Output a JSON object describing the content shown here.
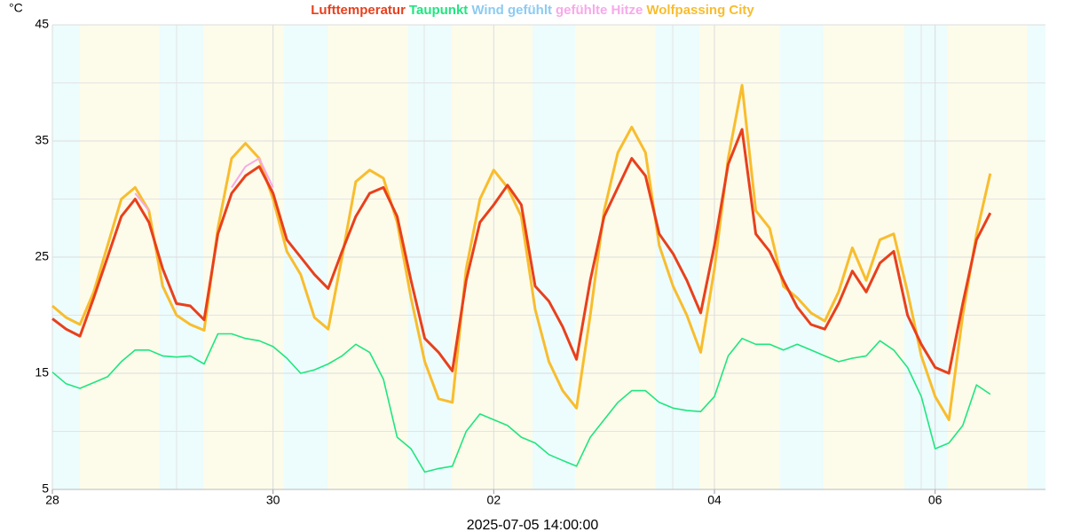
{
  "chart_data": {
    "type": "line",
    "y_unit": "°C",
    "cursor_label": "2025-07-05 14:00:00",
    "x": [
      0,
      3,
      6,
      9,
      12,
      15,
      18,
      21,
      24,
      27,
      30,
      33,
      36,
      39,
      42,
      45,
      48,
      51,
      54,
      57,
      60,
      63,
      66,
      69,
      72,
      75,
      78,
      81,
      84,
      87,
      90,
      93,
      96,
      99,
      102,
      105,
      108,
      111,
      114,
      117,
      120,
      123,
      126,
      129,
      132,
      135,
      138,
      141,
      144,
      147,
      150,
      153,
      156,
      159,
      162,
      165,
      168,
      171,
      174,
      177,
      180,
      183,
      186,
      189,
      192,
      195,
      198,
      201,
      204
    ],
    "xlim": [
      0,
      216
    ],
    "xticks": [
      {
        "value": 0,
        "label": "28"
      },
      {
        "value": 48,
        "label": "30"
      },
      {
        "value": 96,
        "label": "02"
      },
      {
        "value": 144,
        "label": "04"
      },
      {
        "value": 192,
        "label": "06"
      }
    ],
    "ylim": [
      5,
      45
    ],
    "yticks": [
      5,
      15,
      25,
      35,
      45
    ],
    "grid": true,
    "series": [
      {
        "name": "Lufttemperatur",
        "color": "#e8401c",
        "values": [
          19.7,
          18.8,
          18.2,
          21.5,
          25,
          28.5,
          30,
          28,
          24,
          21,
          20.8,
          19.6,
          27,
          30.5,
          32,
          32.8,
          30.5,
          26.5,
          25,
          23.5,
          22.3,
          25.5,
          28.5,
          30.5,
          31,
          28.5,
          23,
          18,
          16.8,
          15.2,
          23,
          28,
          29.5,
          31.2,
          29.5,
          22.5,
          21.2,
          19,
          16.2,
          23,
          28.5,
          31,
          33.5,
          32,
          27,
          25.3,
          23,
          20.2,
          26,
          33,
          36,
          27,
          25.5,
          23,
          20.7,
          19.2,
          18.8,
          21,
          23.8,
          22,
          24.5,
          25.5,
          20,
          17.5,
          15.5,
          15,
          21,
          26.5,
          28.8
        ]
      },
      {
        "name": "Taupunkt",
        "color": "#1ee67f",
        "values": [
          15.1,
          14.1,
          13.7,
          14.2,
          14.7,
          16,
          17,
          17,
          16.5,
          16.4,
          16.5,
          15.8,
          18.4,
          18.4,
          18,
          17.8,
          17.3,
          16.3,
          15,
          15.3,
          15.8,
          16.5,
          17.5,
          16.8,
          14.5,
          9.5,
          8.5,
          6.5,
          6.8,
          7,
          10,
          11.5,
          11,
          10.5,
          9.5,
          9,
          8,
          7.5,
          7,
          9.5,
          11,
          12.5,
          13.5,
          13.5,
          12.5,
          12,
          11.8,
          11.7,
          13,
          16.5,
          18,
          17.5,
          17.5,
          17,
          17.5,
          17,
          16.5,
          16,
          16.3,
          16.5,
          17.8,
          17,
          15.5,
          13,
          8.5,
          9,
          10.5,
          14,
          13.2
        ]
      },
      {
        "name": "Wind gefühlt",
        "color": "#8ccbf2",
        "values": [
          null,
          null,
          null,
          null,
          null,
          null,
          null,
          null,
          null,
          null,
          null,
          null,
          null,
          null,
          null,
          null,
          null,
          null,
          null,
          null,
          null,
          null,
          null,
          null,
          null,
          null,
          null,
          null,
          null,
          null,
          null,
          null,
          null,
          null,
          null,
          null,
          null,
          null,
          null,
          null,
          null,
          null,
          null,
          null,
          null,
          null,
          null,
          null,
          null,
          null,
          null,
          null,
          null,
          null,
          null,
          null,
          null,
          null,
          null,
          null,
          null,
          null,
          null,
          null,
          null,
          null,
          null,
          null,
          null
        ]
      },
      {
        "name": "gefühlte Hitze",
        "color": "#f7a9ea",
        "values": [
          null,
          null,
          null,
          null,
          null,
          null,
          30.5,
          29,
          null,
          null,
          null,
          null,
          null,
          31,
          32.8,
          33.5,
          31,
          null,
          null,
          null,
          null,
          null,
          null,
          null,
          null,
          null,
          null,
          null,
          null,
          null,
          null,
          null,
          null,
          null,
          null,
          null,
          null,
          null,
          null,
          null,
          null,
          null,
          null,
          null,
          null,
          null,
          null,
          null,
          null,
          null,
          null,
          null,
          null,
          null,
          null,
          null,
          null,
          null,
          null,
          null,
          null,
          null,
          null,
          null,
          null,
          null,
          null,
          null,
          null
        ]
      },
      {
        "name": "Wolfpassing City",
        "color": "#f8bd2e",
        "values": [
          20.8,
          19.8,
          19.2,
          22,
          26,
          30,
          31,
          29,
          22.5,
          20,
          19.2,
          18.7,
          27.5,
          33.5,
          34.8,
          33.5,
          30,
          25.5,
          23.5,
          19.8,
          18.8,
          25,
          31.5,
          32.5,
          31.8,
          28,
          21.5,
          16,
          12.8,
          12.5,
          24,
          30,
          32.5,
          31,
          28.5,
          20.5,
          16,
          13.5,
          12,
          20,
          29,
          34,
          36.2,
          34,
          26,
          22.5,
          20,
          16.8,
          24,
          33.5,
          39.8,
          29,
          27.5,
          22.5,
          21.5,
          20.2,
          19.5,
          22,
          25.8,
          23,
          26.5,
          27,
          22,
          16.5,
          13,
          11,
          20,
          27,
          32.2
        ]
      }
    ]
  }
}
